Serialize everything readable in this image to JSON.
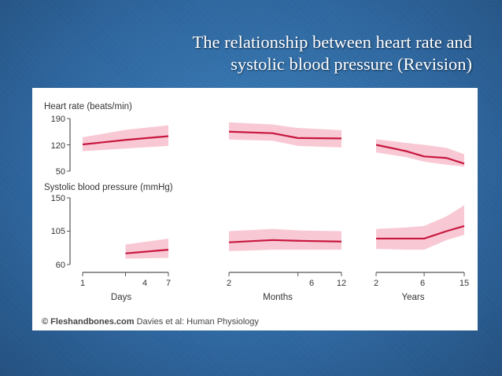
{
  "slide": {
    "title_line1": "The relationship between heart rate and",
    "title_line2": "systolic blood pressure (Revision)"
  },
  "colors": {
    "line": "#c8163f",
    "band": "#f7c3d0",
    "axis": "#555555",
    "text": "#333333"
  },
  "chart_data": {
    "type": "line",
    "panels": [
      {
        "title": "Heart rate (beats/min)",
        "yticks": [
          50,
          120,
          190
        ],
        "ylim": [
          50,
          190
        ],
        "segments": [
          {
            "name": "Days",
            "points": [
              [
                1,
                121
              ],
              [
                4,
                133
              ],
              [
                7,
                143
              ]
            ],
            "band": [
              [
                1,
                103,
                140
              ],
              [
                4,
                110,
                160
              ],
              [
                7,
                117,
                172
              ]
            ]
          },
          {
            "name": "Months",
            "points": [
              [
                2,
                155
              ],
              [
                4,
                151
              ],
              [
                6,
                138
              ],
              [
                12,
                137
              ]
            ],
            "band": [
              [
                2,
                134,
                180
              ],
              [
                4,
                131,
                174
              ],
              [
                6,
                117,
                165
              ],
              [
                12,
                113,
                159
              ]
            ]
          },
          {
            "name": "Years",
            "points": [
              [
                2,
                120
              ],
              [
                4,
                103
              ],
              [
                6,
                89
              ],
              [
                10,
                85
              ],
              [
                15,
                70
              ]
            ],
            "band": [
              [
                2,
                100,
                135
              ],
              [
                4,
                87,
                125
              ],
              [
                6,
                75,
                120
              ],
              [
                10,
                67,
                112
              ],
              [
                15,
                62,
                95
              ]
            ]
          }
        ]
      },
      {
        "title": "Systolic blood pressure (mmHg)",
        "yticks": [
          60,
          105,
          150
        ],
        "ylim": [
          60,
          150
        ],
        "segments": [
          {
            "name": "Days",
            "points": [
              [
                4,
                75
              ],
              [
                7,
                80
              ]
            ],
            "band": [
              [
                4,
                68,
                87
              ],
              [
                7,
                69,
                95
              ]
            ]
          },
          {
            "name": "Months",
            "points": [
              [
                2,
                90
              ],
              [
                4,
                93
              ],
              [
                6,
                92
              ],
              [
                12,
                91
              ]
            ],
            "band": [
              [
                2,
                78,
                105
              ],
              [
                4,
                80,
                108
              ],
              [
                6,
                80,
                106
              ],
              [
                12,
                80,
                105
              ]
            ]
          },
          {
            "name": "Years",
            "points": [
              [
                2,
                95
              ],
              [
                4,
                95
              ],
              [
                6,
                95
              ],
              [
                10,
                105
              ],
              [
                15,
                112
              ]
            ],
            "band": [
              [
                2,
                81,
                108
              ],
              [
                4,
                80,
                110
              ],
              [
                6,
                80,
                112
              ],
              [
                10,
                93,
                125
              ],
              [
                15,
                100,
                140
              ]
            ]
          }
        ]
      }
    ],
    "x_groups": [
      {
        "label": "Days",
        "ticks": [
          "1",
          "4",
          "7"
        ]
      },
      {
        "label": "Months",
        "ticks": [
          "2",
          "6",
          "12"
        ]
      },
      {
        "label": "Years",
        "ticks": [
          "2",
          "6",
          "15"
        ]
      }
    ],
    "credit_site": "Fleshandbones.com",
    "credit_source": "Davies et al: Human Physiology"
  }
}
